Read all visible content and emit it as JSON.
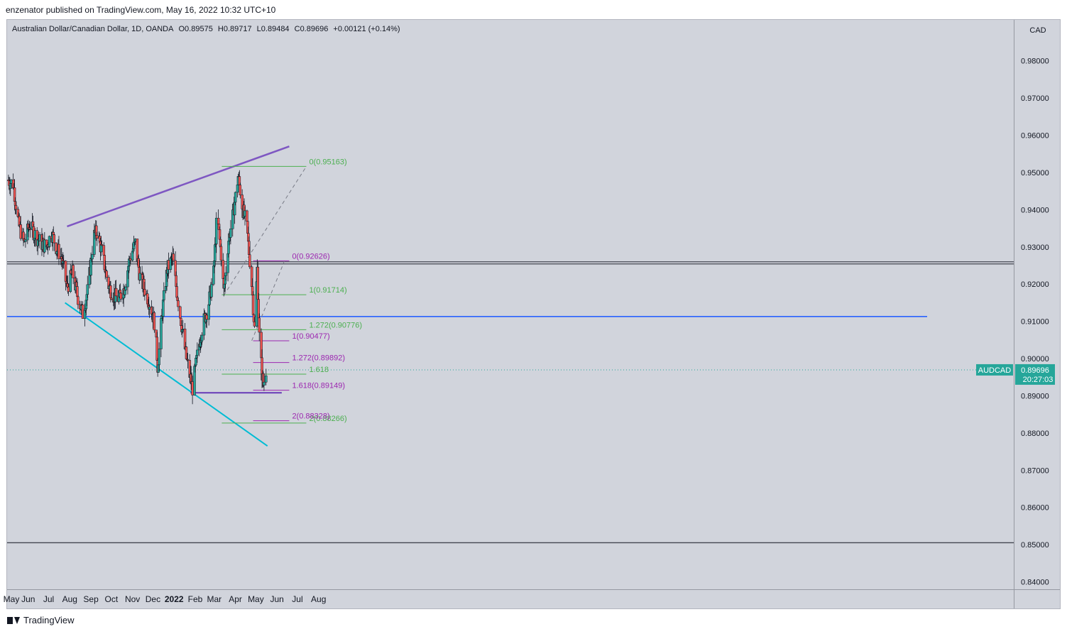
{
  "header": {
    "published": "enzenator published on TradingView.com, May 16, 2022 10:32 UTC+10"
  },
  "legend": {
    "title": "Australian Dollar/Canadian Dollar, 1D, OANDA",
    "open": "O0.89575",
    "high": "H0.89717",
    "low": "L0.89484",
    "close": "C0.89696",
    "change": "+0.00121 (+0.14%)"
  },
  "footer": {
    "brand": "TradingView"
  },
  "colors": {
    "background": "#d1d4dc",
    "up": "#26a69a",
    "down": "#ef5350",
    "purple_trend": "#7e57c2",
    "cyan_trend": "#00bcd4",
    "blue_level": "#2962ff",
    "fib_green": "#4caf50",
    "fib_purple": "#9c27b0",
    "price_label": "#26a69a"
  },
  "chart_data": {
    "type": "candlestick",
    "symbol": "AUDCAD",
    "interval": "1D",
    "y_axis_unit": "CAD",
    "ylim": [
      0.838,
      0.991
    ],
    "y_ticks": [
      "0.98000",
      "0.97000",
      "0.96000",
      "0.95000",
      "0.94000",
      "0.93000",
      "0.92000",
      "0.91000",
      "0.90000",
      "0.89000",
      "0.88000",
      "0.87000",
      "0.86000",
      "0.85000",
      "0.84000"
    ],
    "x_ticks": [
      "May",
      "Jun",
      "Jul",
      "Aug",
      "Sep",
      "Oct",
      "Nov",
      "Dec",
      "2022",
      "Feb",
      "Mar",
      "Apr",
      "May",
      "Jun",
      "Jul",
      "Aug"
    ],
    "last_price": {
      "label": "AUDCAD",
      "value": "0.89696",
      "countdown": "20:27:03"
    },
    "close_path": [
      [
        "2021-05-01",
        0.948
      ],
      [
        "2021-05-10",
        0.947
      ],
      [
        "2021-05-18",
        0.936
      ],
      [
        "2021-05-26",
        0.931
      ],
      [
        "2021-06-03",
        0.936
      ],
      [
        "2021-06-12",
        0.933
      ],
      [
        "2021-06-20",
        0.931
      ],
      [
        "2021-06-28",
        0.93
      ],
      [
        "2021-07-05",
        0.934
      ],
      [
        "2021-07-12",
        0.93
      ],
      [
        "2021-07-20",
        0.927
      ],
      [
        "2021-07-28",
        0.919
      ],
      [
        "2021-08-05",
        0.923
      ],
      [
        "2021-08-12",
        0.917
      ],
      [
        "2021-08-20",
        0.912
      ],
      [
        "2021-08-28",
        0.919
      ],
      [
        "2021-09-05",
        0.933
      ],
      [
        "2021-09-10",
        0.934
      ],
      [
        "2021-09-18",
        0.928
      ],
      [
        "2021-09-26",
        0.92
      ],
      [
        "2021-10-04",
        0.917
      ],
      [
        "2021-10-12",
        0.916
      ],
      [
        "2021-10-20",
        0.919
      ],
      [
        "2021-10-28",
        0.927
      ],
      [
        "2021-11-05",
        0.931
      ],
      [
        "2021-11-12",
        0.922
      ],
      [
        "2021-11-20",
        0.918
      ],
      [
        "2021-11-28",
        0.914
      ],
      [
        "2021-12-04",
        0.909
      ],
      [
        "2021-12-08",
        0.898
      ],
      [
        "2021-12-15",
        0.913
      ],
      [
        "2021-12-22",
        0.924
      ],
      [
        "2021-12-30",
        0.927
      ],
      [
        "2022-01-05",
        0.918
      ],
      [
        "2022-01-12",
        0.909
      ],
      [
        "2022-01-19",
        0.9
      ],
      [
        "2022-01-28",
        0.892
      ],
      [
        "2022-02-05",
        0.902
      ],
      [
        "2022-02-12",
        0.909
      ],
      [
        "2022-02-20",
        0.914
      ],
      [
        "2022-02-28",
        0.923
      ],
      [
        "2022-03-05",
        0.939
      ],
      [
        "2022-03-11",
        0.928
      ],
      [
        "2022-03-15",
        0.918
      ],
      [
        "2022-03-22",
        0.932
      ],
      [
        "2022-03-28",
        0.938
      ],
      [
        "2022-04-05",
        0.949
      ],
      [
        "2022-04-12",
        0.94
      ],
      [
        "2022-04-18",
        0.935
      ],
      [
        "2022-04-25",
        0.92
      ],
      [
        "2022-04-29",
        0.908
      ],
      [
        "2022-05-03",
        0.924
      ],
      [
        "2022-05-06",
        0.906
      ],
      [
        "2022-05-10",
        0.896
      ],
      [
        "2022-05-12",
        0.893
      ],
      [
        "2022-05-16",
        0.897
      ]
    ],
    "drawings": {
      "purple_upper_trendline": [
        [
          "2021-07-28",
          0.9355
        ],
        [
          "2022-06-19",
          0.957
        ]
      ],
      "cyan_lower_trendline": [
        [
          "2021-07-25",
          0.915
        ],
        [
          "2022-05-18",
          0.8765
        ]
      ],
      "blue_horizontal": 0.9113,
      "dark_horizontal": 0.926,
      "bottom_horizontal": 0.8505,
      "purple_support": [
        [
          "2022-01-25",
          0.8908
        ],
        [
          "2022-06-08",
          0.8908
        ]
      ],
      "dashed_projection_1": [
        [
          "2022-03-15",
          0.917
        ],
        [
          "2022-07-14",
          0.9516
        ]
      ],
      "dashed_projection_2": [
        [
          "2022-04-25",
          0.9048
        ],
        [
          "2022-06-12",
          0.9262
        ]
      ]
    },
    "fib_green": {
      "x_range": [
        "2022-03-12",
        "2022-07-14"
      ],
      "levels": [
        {
          "label": "0(0.95163)",
          "value": 0.95163
        },
        {
          "label": "1(0.91714)",
          "value": 0.91714
        },
        {
          "label": "1.272(0.90776)",
          "value": 0.90776
        },
        {
          "label": "1.618",
          "value": 0.8958
        },
        {
          "label": "2(0.88266)",
          "value": 0.88266
        }
      ]
    },
    "fib_purple": {
      "x_range": [
        "2022-04-27",
        "2022-06-19"
      ],
      "levels": [
        {
          "label": "0(0.92626)",
          "value": 0.92626
        },
        {
          "label": "1(0.90477)",
          "value": 0.90477
        },
        {
          "label": "1.272(0.89892)",
          "value": 0.89892
        },
        {
          "label": "1.618(0.89149)",
          "value": 0.89149
        },
        {
          "label": "2(0.88328)",
          "value": 0.88328
        }
      ]
    }
  }
}
